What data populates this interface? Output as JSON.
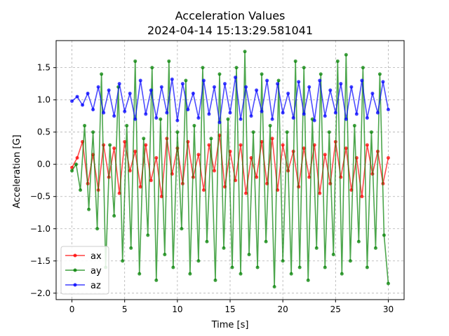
{
  "chart_data": {
    "type": "line",
    "title": "Acceleration Values",
    "subtitle": "2024-04-14 15:13:29.581041",
    "xlabel": "Time [s]",
    "ylabel": "Acceleration [G]",
    "xlim": [
      -1.5,
      31.5
    ],
    "ylim": [
      -2.1,
      1.92
    ],
    "xticks": [
      0,
      5,
      10,
      15,
      20,
      25,
      30
    ],
    "xtick_labels": [
      "0",
      "5",
      "10",
      "15",
      "20",
      "25",
      "30"
    ],
    "yticks": [
      -2.0,
      -1.5,
      -1.0,
      -0.5,
      0.0,
      0.5,
      1.0,
      1.5
    ],
    "ytick_labels": [
      "−2.0",
      "−1.5",
      "−1.0",
      "−0.5",
      "0.0",
      "0.5",
      "1.0",
      "1.5"
    ],
    "grid": true,
    "legend_position": "lower-left",
    "x_range": [
      0,
      30
    ],
    "series": [
      {
        "name": "ax",
        "color": "#ff0000",
        "x": [
          0.0,
          0.5,
          1.0,
          1.5,
          2.0,
          2.5,
          3.0,
          3.5,
          4.0,
          4.5,
          5.0,
          5.5,
          6.0,
          6.5,
          7.0,
          7.5,
          8.0,
          8.5,
          9.0,
          9.5,
          10.0,
          10.5,
          11.0,
          11.5,
          12.0,
          12.5,
          13.0,
          13.5,
          14.0,
          14.5,
          15.0,
          15.5,
          16.0,
          16.5,
          17.0,
          17.5,
          18.0,
          18.5,
          19.0,
          19.5,
          20.0,
          20.5,
          21.0,
          21.5,
          22.0,
          22.5,
          23.0,
          23.5,
          24.0,
          24.5,
          25.0,
          25.5,
          26.0,
          26.5,
          27.0,
          27.5,
          28.0,
          28.5,
          29.0,
          29.5,
          30.0
        ],
        "values": [
          -0.05,
          0.1,
          0.35,
          -0.3,
          0.15,
          -0.4,
          0.3,
          -0.2,
          0.25,
          -0.45,
          0.35,
          -0.1,
          0.2,
          -0.35,
          0.3,
          -0.25,
          0.1,
          -0.5,
          0.4,
          -0.15,
          0.25,
          -0.3,
          0.35,
          -0.2,
          0.15,
          -0.4,
          0.3,
          -0.1,
          0.45,
          -0.35,
          0.2,
          -0.25,
          0.3,
          -0.45,
          0.1,
          -0.2,
          0.35,
          -0.3,
          0.4,
          -0.4,
          0.3,
          -0.1,
          0.2,
          -0.35,
          0.25,
          -0.2,
          0.3,
          -0.45,
          0.15,
          -0.3,
          0.35,
          -0.2,
          0.25,
          -0.4,
          0.1,
          -0.5,
          0.3,
          -0.15,
          0.2,
          -0.3,
          0.1
        ]
      },
      {
        "name": "ay",
        "color": "#008000",
        "x": [
          0.0,
          0.4,
          0.8,
          1.2,
          1.6,
          2.0,
          2.4,
          2.8,
          3.2,
          3.6,
          4.0,
          4.4,
          4.8,
          5.2,
          5.6,
          6.0,
          6.4,
          6.8,
          7.2,
          7.6,
          8.0,
          8.4,
          8.8,
          9.2,
          9.6,
          10.0,
          10.4,
          10.8,
          11.2,
          11.6,
          12.0,
          12.4,
          12.8,
          13.2,
          13.6,
          14.0,
          14.4,
          14.8,
          15.2,
          15.6,
          16.0,
          16.4,
          16.8,
          17.2,
          17.6,
          18.0,
          18.4,
          18.8,
          19.2,
          19.6,
          20.0,
          20.4,
          20.8,
          21.2,
          21.6,
          22.0,
          22.4,
          22.8,
          23.2,
          23.6,
          24.0,
          24.4,
          24.8,
          25.2,
          25.6,
          26.0,
          26.4,
          26.8,
          27.2,
          27.6,
          28.0,
          28.4,
          28.8,
          29.2,
          29.6,
          30.0
        ],
        "values": [
          -0.1,
          0.0,
          -0.4,
          0.6,
          -0.7,
          0.5,
          -1.0,
          1.4,
          -1.6,
          0.3,
          -0.8,
          1.2,
          -1.5,
          0.6,
          -1.3,
          1.6,
          -1.7,
          0.4,
          -1.1,
          1.5,
          -1.8,
          0.7,
          -1.4,
          1.6,
          -1.6,
          0.5,
          -1.0,
          1.3,
          -1.7,
          0.6,
          -1.5,
          1.5,
          -1.2,
          0.4,
          -1.8,
          1.4,
          -1.3,
          0.7,
          -1.6,
          1.5,
          -1.7,
          1.75,
          -1.4,
          0.5,
          -1.6,
          1.4,
          -1.2,
          0.6,
          -1.9,
          1.3,
          -1.5,
          0.5,
          -1.7,
          1.6,
          -1.6,
          1.5,
          -1.8,
          0.7,
          -1.3,
          1.4,
          -1.6,
          0.5,
          -1.4,
          1.6,
          -1.7,
          1.7,
          -1.5,
          0.6,
          -1.2,
          1.5,
          -1.6,
          0.5,
          -1.3,
          1.4,
          -1.1,
          -1.85
        ]
      },
      {
        "name": "az",
        "color": "#0000ff",
        "x": [
          0.0,
          0.5,
          1.0,
          1.5,
          2.0,
          2.5,
          3.0,
          3.5,
          4.0,
          4.5,
          5.0,
          5.5,
          6.0,
          6.5,
          7.0,
          7.5,
          8.0,
          8.5,
          9.0,
          9.5,
          10.0,
          10.5,
          11.0,
          11.5,
          12.0,
          12.5,
          13.0,
          13.5,
          14.0,
          14.5,
          15.0,
          15.5,
          16.0,
          16.5,
          17.0,
          17.5,
          18.0,
          18.5,
          19.0,
          19.5,
          20.0,
          20.5,
          21.0,
          21.5,
          22.0,
          22.5,
          23.0,
          23.5,
          24.0,
          24.5,
          25.0,
          25.5,
          26.0,
          26.5,
          27.0,
          27.5,
          28.0,
          28.5,
          29.0,
          29.5,
          30.0
        ],
        "values": [
          0.98,
          1.05,
          0.92,
          1.1,
          0.85,
          1.2,
          0.8,
          1.15,
          0.75,
          1.25,
          0.82,
          1.1,
          0.7,
          1.3,
          0.78,
          1.15,
          0.72,
          1.2,
          0.8,
          1.32,
          0.68,
          1.25,
          0.85,
          1.1,
          0.72,
          1.3,
          0.78,
          1.2,
          0.65,
          1.25,
          0.8,
          1.35,
          0.7,
          1.2,
          0.75,
          1.15,
          0.82,
          1.3,
          0.7,
          1.25,
          0.8,
          1.1,
          0.72,
          1.28,
          0.78,
          1.2,
          0.68,
          1.3,
          0.75,
          1.15,
          0.8,
          1.25,
          0.7,
          1.2,
          0.78,
          1.3,
          0.72,
          1.1,
          0.8,
          1.28,
          0.85
        ]
      }
    ]
  }
}
